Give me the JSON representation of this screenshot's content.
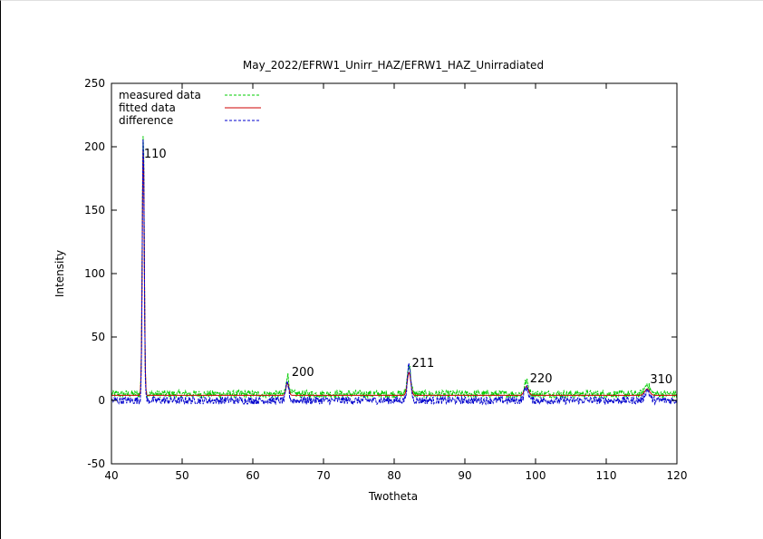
{
  "chart_data": {
    "type": "line",
    "title": "May_2022/EFRW1_Unirr_HAZ/EFRW1_HAZ_Unirradiated",
    "xlabel": "Twotheta",
    "ylabel": "Intensity",
    "xlim": [
      40,
      120
    ],
    "ylim": [
      -50,
      250
    ],
    "xticks": [
      40,
      50,
      60,
      70,
      80,
      90,
      100,
      110,
      120
    ],
    "yticks": [
      -50,
      0,
      50,
      100,
      150,
      200,
      250
    ],
    "grid": false,
    "legend_position": "top-left",
    "series": [
      {
        "name": "measured data",
        "color": "#00cc00",
        "style": "dashed",
        "baseline": 5,
        "noise": 3,
        "peaks": [
          {
            "x": 44.5,
            "y": 211
          },
          {
            "x": 64.9,
            "y": 20
          },
          {
            "x": 82.1,
            "y": 28
          },
          {
            "x": 98.7,
            "y": 15
          },
          {
            "x": 115.8,
            "y": 13
          }
        ]
      },
      {
        "name": "fitted data",
        "color": "#cc0000",
        "style": "solid",
        "baseline": 4,
        "noise": 0,
        "peaks": [
          {
            "x": 44.5,
            "y": 200
          },
          {
            "x": 64.9,
            "y": 14
          },
          {
            "x": 82.1,
            "y": 22
          },
          {
            "x": 98.7,
            "y": 11
          },
          {
            "x": 115.8,
            "y": 9
          }
        ]
      },
      {
        "name": "difference",
        "color": "#0000cc",
        "style": "dashed",
        "baseline": 0,
        "noise": 3,
        "peaks": [
          {
            "x": 44.5,
            "y": 205
          },
          {
            "x": 64.9,
            "y": 14
          },
          {
            "x": 82.1,
            "y": 27
          },
          {
            "x": 98.7,
            "y": 10
          },
          {
            "x": 115.8,
            "y": 8
          }
        ]
      }
    ],
    "annotations": [
      {
        "text": "110",
        "x": 44.6,
        "y": 190
      },
      {
        "text": "200",
        "x": 65.5,
        "y": 18
      },
      {
        "text": "211",
        "x": 82.5,
        "y": 25
      },
      {
        "text": "220",
        "x": 99.2,
        "y": 13
      },
      {
        "text": "310",
        "x": 116.2,
        "y": 12
      }
    ]
  }
}
